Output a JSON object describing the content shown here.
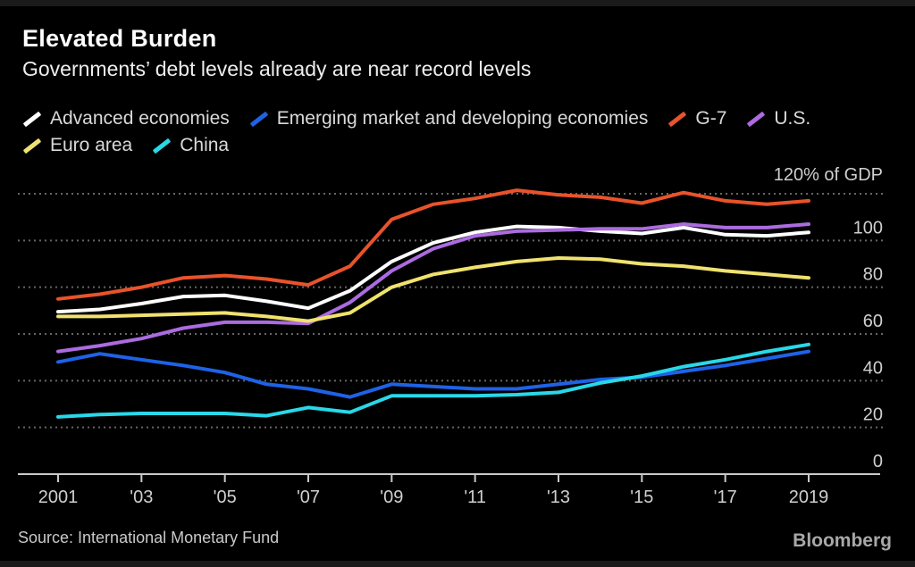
{
  "chart_data": {
    "type": "line",
    "title": "Elevated Burden",
    "subtitle": "Governments’ debt levels already are near record levels",
    "ylabel_top": "120% of GDP",
    "ylim": [
      0,
      120
    ],
    "yticks": [
      0,
      20,
      40,
      60,
      80,
      100,
      120
    ],
    "grid": "dashed-horizontal",
    "legend_position": "top",
    "x": [
      2001,
      2002,
      2003,
      2004,
      2005,
      2006,
      2007,
      2008,
      2009,
      2010,
      2011,
      2012,
      2013,
      2014,
      2015,
      2016,
      2017,
      2018,
      2019
    ],
    "xtick_years": [
      2001,
      2003,
      2005,
      2007,
      2009,
      2011,
      2013,
      2015,
      2017,
      2019
    ],
    "xtick_labels": [
      "2001",
      "'03",
      "'05",
      "'07",
      "'09",
      "'11",
      "'13",
      "'15",
      "'17",
      "2019"
    ],
    "series": [
      {
        "name": "Advanced economies",
        "color": "#ffffff",
        "values": [
          69.5,
          70.5,
          73,
          76,
          76.5,
          74,
          71,
          78.5,
          91,
          99,
          103.5,
          106,
          105.5,
          104,
          103,
          105.5,
          102.5,
          102,
          103.5
        ]
      },
      {
        "name": "Emerging market and developing economies",
        "color": "#1e62e6",
        "values": [
          48,
          51.5,
          49,
          46.5,
          43.5,
          38.5,
          36.5,
          33,
          38.5,
          37.5,
          36.5,
          36.5,
          38.5,
          40.5,
          41.5,
          44,
          46.5,
          49.5,
          52.5
        ]
      },
      {
        "name": "G-7",
        "color": "#e8532b",
        "values": [
          75,
          77,
          80,
          84,
          85,
          83.5,
          81,
          89,
          109,
          115.5,
          118,
          121.5,
          119.5,
          118.5,
          116,
          120.5,
          117,
          115.5,
          117
        ]
      },
      {
        "name": "U.S.",
        "color": "#ac6be0",
        "values": [
          52.5,
          55,
          58,
          62.5,
          65,
          65,
          64.5,
          73.5,
          87,
          96.5,
          102,
          104,
          104.5,
          105,
          105,
          107,
          105.5,
          105.5,
          107
        ]
      },
      {
        "name": "Euro area",
        "color": "#f0e26e",
        "values": [
          67.5,
          67.5,
          68,
          68.5,
          69,
          67.5,
          65.5,
          69,
          80,
          85.5,
          88.5,
          91,
          92.5,
          92,
          90,
          89,
          87,
          85.5,
          84
        ]
      },
      {
        "name": "China",
        "color": "#29d8e8",
        "values": [
          24.5,
          25.5,
          26,
          26,
          26,
          25,
          28.5,
          26.5,
          33.5,
          33.5,
          33.5,
          34,
          35,
          39,
          42,
          46,
          49,
          52.5,
          55.5
        ]
      }
    ]
  },
  "footer": {
    "source": "Source: International Monetary Fund",
    "brand": "Bloomberg"
  }
}
